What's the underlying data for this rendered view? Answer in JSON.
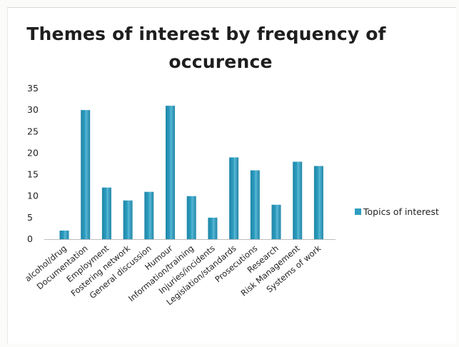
{
  "chart_data": {
    "type": "bar",
    "title_lines": [
      "Themes of interest by frequency of",
      "occurence"
    ],
    "categories": [
      "alcohol/drug",
      "Documentation",
      "Employment",
      "Fostering network",
      "General discussion",
      "Humour",
      "Information/training",
      "Injuries/incidents",
      "Legislation/standards",
      "Prosecutions",
      "Research",
      "Risk Management",
      "Systems of work"
    ],
    "series": [
      {
        "name": "Topics of interest",
        "color": "#2e9ec0",
        "values": [
          2,
          30,
          12,
          9,
          11,
          31,
          10,
          5,
          19,
          16,
          8,
          18,
          17
        ]
      }
    ],
    "yticks": [
      "35",
      "30",
      "25",
      "20",
      "15",
      "10",
      "5",
      "0"
    ],
    "ylim": [
      0,
      35
    ],
    "legend_position": "right",
    "grid": false
  }
}
